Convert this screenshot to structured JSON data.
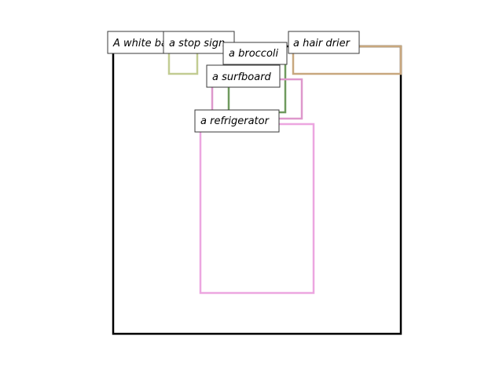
{
  "scene": {
    "objects": [
      {
        "id": "white-background",
        "label": "A white background",
        "color": "#000000"
      },
      {
        "id": "stop-sign",
        "label": "a stop sign",
        "color": "#c2cc92"
      },
      {
        "id": "hair-drier",
        "label": "a hair drier",
        "color": "#c8a77e"
      },
      {
        "id": "broccoli",
        "label": "a broccoli",
        "color": "#6f9a5e"
      },
      {
        "id": "surfboard",
        "label": "a surfboard",
        "color": "#de98cc"
      },
      {
        "id": "refrigerator",
        "label": "a refrigerator",
        "color": "#eca6e0"
      }
    ]
  }
}
